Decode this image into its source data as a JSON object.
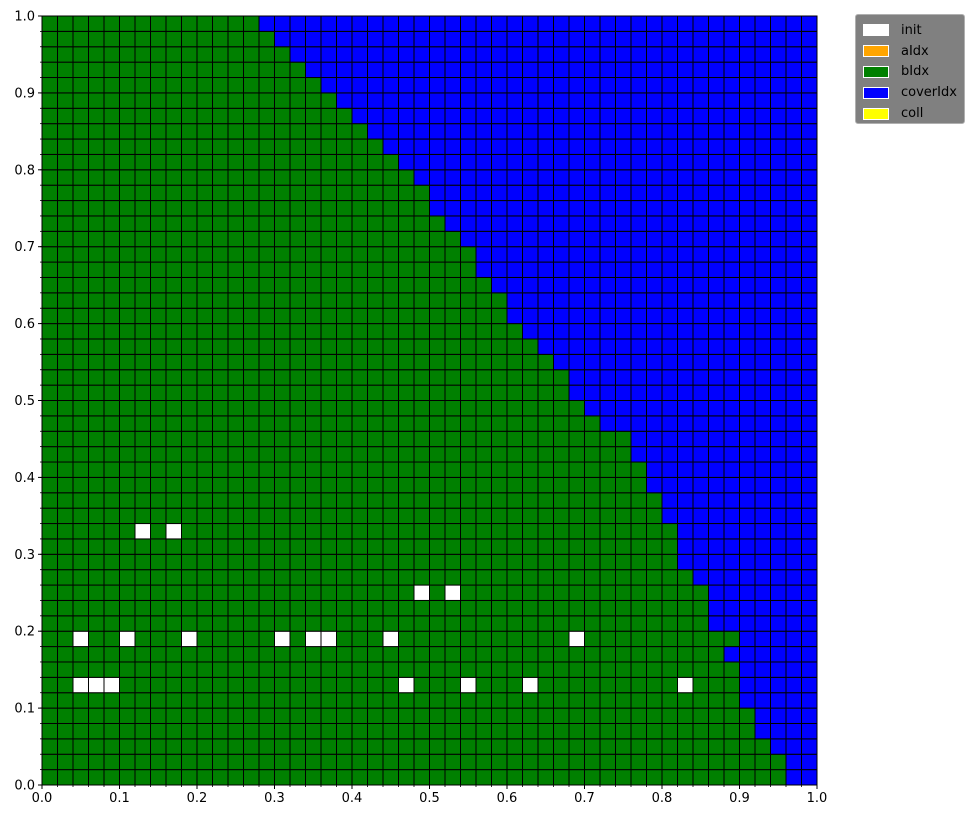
{
  "chart_data": {
    "type": "heatmap",
    "xlim": [
      0.0,
      1.0
    ],
    "ylim": [
      0.0,
      1.0
    ],
    "grid_size": 50,
    "xticks": [
      "0.0",
      "0.1",
      "0.2",
      "0.3",
      "0.4",
      "0.5",
      "0.6",
      "0.7",
      "0.8",
      "0.9",
      "1.0"
    ],
    "yticks": [
      "0.0",
      "0.1",
      "0.2",
      "0.3",
      "0.4",
      "0.5",
      "0.6",
      "0.7",
      "0.8",
      "0.9",
      "1.0"
    ],
    "legend": [
      {
        "label": "init",
        "color": "#ffffff"
      },
      {
        "label": "aIdx",
        "color": "#ffa500"
      },
      {
        "label": "bIdx",
        "color": "#008000"
      },
      {
        "label": "coverIdx",
        "color": "#0000ff"
      },
      {
        "label": "coll",
        "color": "#ffff00"
      }
    ],
    "legend_position": "outside-top-right",
    "rows": [
      "GGGGGGGGGGGGGGGGGGGGGGGGGGGGGGGGGGGGGGGGGGGGGGGGBB",
      "GGGGGGGGGGGGGGGGGGGGGGGGGGGGGGGGGGGGGGGGGGGGGGGGBB",
      "GGGGGGGGGGGGGGGGGGGGGGGGGGGGGGGGGGGGGGGGGGGGGGGBBB",
      "GGGGGGGGGGGGGGGGGGGGGGGGGGGGGGGGGGGGGGGGGGGGGGBBBB",
      "GGGGGGGGGGGGGGGGGGGGGGGGGGGGGGGGGGGGGGGGGGGGGGBBBB",
      "GGGGGGGGGGGGGGGGGGGGGGGGGGGGGGGGGGGGGGGGGGGGGBBBBB",
      "GGWWWGGGGGGGGGGGGGGGGGGWGGGWGGGWGGGGGGGGGWGGGBBBBB",
      "GGGGGGGGGGGGGGGGGGGGGGGGGGGGGGGGGGGGGGGGGGGGGBBBBB",
      "GGGGGGGGGGGGGGGGGGGGGGGGGGGGGGGGGGGGGGGGGGGGBBBBBB",
      "GGWGGWGGGWGGGGGWGWWGGGWGGGGGGGGGGGWGGGGGGGGGGBBBBB",
      "GGGGGGGGGGGGGGGGGGGGGGGGGGGGGGGGGGGGGGGGGGGBBBBBBB",
      "GGGGGGGGGGGGGGGGGGGGGGGGGGGGGGGGGGGGGGGGGGGBBBBBBB",
      "GGGGGGGGGGGGGGGGGGGGGGGGWGWGGGGGGGGGGGGGGGGBBBBBBB",
      "GGGGGGGGGGGGGGGGGGGGGGGGGGGGGGGGGGGGGGGGGGBBBBBBBB",
      "GGGGGGGGGGGGGGGGGGGGGGGGGGGGGGGGGGGGGGGGGBBBBBBBBB",
      "GGGGGGGGGGGGGGGGGGGGGGGGGGGGGGGGGGGGGGGGGBBBBBBBBB",
      "GGGGGGWGWGGGGGGGGGGGGGGGGGGGGGGGGGGGGGGGGBBBBBBBBB",
      "GGGGGGGGGGGGGGGGGGGGGGGGGGGGGGGGGGGGGGGGBBBBBBBBBB",
      "GGGGGGGGGGGGGGGGGGGGGGGGGGGGGGGGGGGGGGGGBBBBBBBBBB",
      "GGGGGGGGGGGGGGGGGGGGGGGGGGGGGGGGGGGGGGGBBBBBBBBBBB",
      "GGGGGGGGGGGGGGGGGGGGGGGGGGGGGGGGGGGGGGGBBBBBBBBBBB",
      "GGGGGGGGGGGGGGGGGGGGGGGGGGGGGGGGGGGGGGBBBBBBBBBBBB",
      "GGGGGGGGGGGGGGGGGGGGGGGGGGGGGGGGGGGGGGBBBBBBBBBBBB",
      "GGGGGGGGGGGGGGGGGGGGGGGGGGGGGGGGGGGGBBBBBBBBBBBBBB",
      "GGGGGGGGGGGGGGGGGGGGGGGGGGGGGGGGGGGBBBBBBBBBBBBBBB",
      "GGGGGGGGGGGGGGGGGGGGGGGGGGGGGGGGGGBBBBBBBBBBBBBBBB",
      "GGGGGGGGGGGGGGGGGGGGGGGGGGGGGGGGGGBBBBBBBBBBBBBBBB",
      "GGGGGGGGGGGGGGGGGGGGGGGGGGGGGGGGGBBBBBBBBBBBBBBBBB",
      "GGGGGGGGGGGGGGGGGGGGGGGGGGGGGGGGBBBBBBBBBBBBBBBBBB",
      "GGGGGGGGGGGGGGGGGGGGGGGGGGGGGGGBBBBBBBBBBBBBBBBBBB",
      "GGGGGGGGGGGGGGGGGGGGGGGGGGGGGGBBBBBBBBBBBBBBBBBBBB",
      "GGGGGGGGGGGGGGGGGGGGGGGGGGGGGGBBBBBBBBBBBBBBBBBBBB",
      "GGGGGGGGGGGGGGGGGGGGGGGGGGGGGBBBBBBBBBBBBBBBBBBBBB",
      "GGGGGGGGGGGGGGGGGGGGGGGGGGGGBBBBBBBBBBBBBBBBBBBBBB",
      "GGGGGGGGGGGGGGGGGGGGGGGGGGGGBBBBBBBBBBBBBBBBBBBBBB",
      "GGGGGGGGGGGGGGGGGGGGGGGGGGGBBBBBBBBBBBBBBBBBBBBBBB",
      "GGGGGGGGGGGGGGGGGGGGGGGGGGBBBBBBBBBBBBBBBBBBBBBBBB",
      "GGGGGGGGGGGGGGGGGGGGGGGGGBBBBBBBBBBBBBBBBBBBBBBBBB",
      "GGGGGGGGGGGGGGGGGGGGGGGGGBBBBBBBBBBBBBBBBBBBBBBBBB",
      "GGGGGGGGGGGGGGGGGGGGGGGGBBBBBBBBBBBBBBBBBBBBBBBBBB",
      "GGGGGGGGGGGGGGGGGGGGGGGBBBBBBBBBBBBBBBBBBBBBBBBBBB",
      "GGGGGGGGGGGGGGGGGGGGGGBBBBBBBBBBBBBBBBBBBBBBBBBBBB",
      "GGGGGGGGGGGGGGGGGGGGGBBBBBBBBBBBBBBBBBBBBBBBBBBBBB",
      "GGGGGGGGGGGGGGGGGGGGBBBBBBBBBBBBBBBBBBBBBBBBBBBBBB",
      "GGGGGGGGGGGGGGGGGGGBBBBBBBBBBBBBBBBBBBBBBBBBBBBBBB",
      "GGGGGGGGGGGGGGGGGGBBBBBBBBBBBBBBBBBBBBBBBBBBBBBBBB",
      "GGGGGGGGGGGGGGGGGBBBBBBBBBBBBBBBBBBBBBBBBBBBBBBBBB",
      "GGGGGGGGGGGGGGGGBBBBBBBBBBBBBBBBBBBBBBBBBBBBBBBBBB",
      "GGGGGGGGGGGGGGGBBBBBBBBBBBBBBBBBBBBBBBBBBBBBBBBBBB",
      "GGGGGGGGGGGGGGBBBBBBBBBBBBBBBBBBBBBBBBBBBBBBBBBBBB"
    ]
  }
}
